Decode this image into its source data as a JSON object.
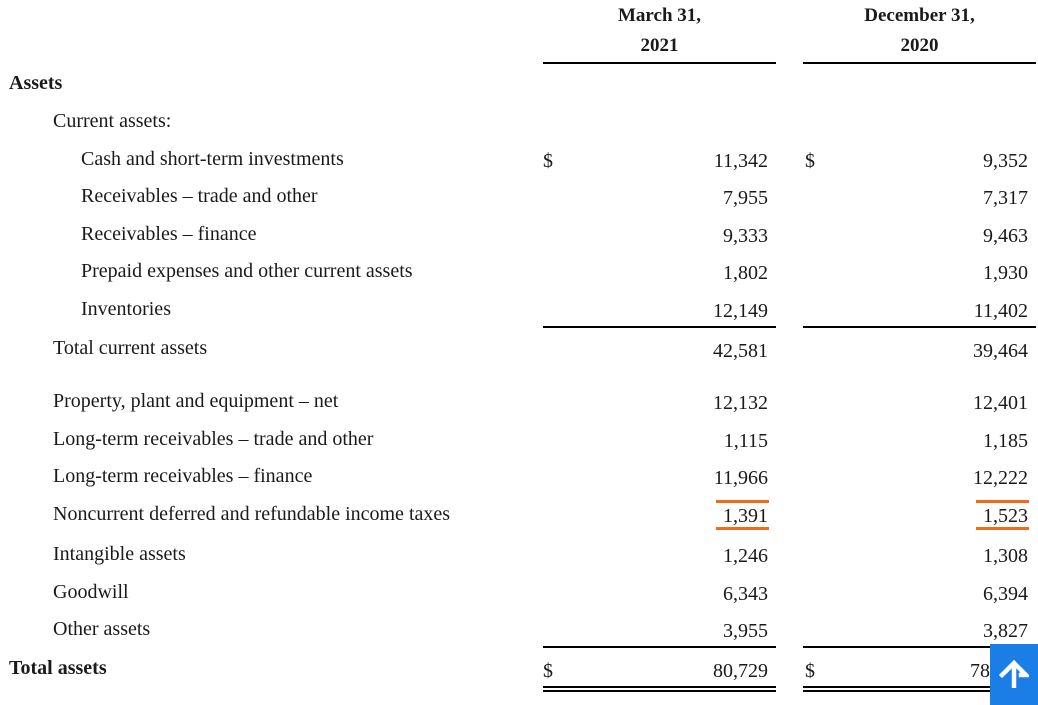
{
  "header": {
    "col1_line1": "March 31,",
    "col1_line2": "2021",
    "col2_line1": "December 31,",
    "col2_line2": "2020"
  },
  "section_title": "Assets",
  "current_assets_label": "Current assets:",
  "currency_symbol": "$",
  "rows": [
    {
      "label": "Cash and short-term investments",
      "mar": "11,342",
      "dec": "9,352"
    },
    {
      "label": "Receivables – trade and other",
      "mar": "7,955",
      "dec": "7,317"
    },
    {
      "label": "Receivables – finance",
      "mar": "9,333",
      "dec": "9,463"
    },
    {
      "label": "Prepaid expenses and other current assets",
      "mar": "1,802",
      "dec": "1,930"
    },
    {
      "label": "Inventories",
      "mar": "12,149",
      "dec": "11,402"
    },
    {
      "label": "Total current assets",
      "mar": "42,581",
      "dec": "39,464"
    },
    {
      "label": "Property, plant and equipment – net",
      "mar": "12,132",
      "dec": "12,401"
    },
    {
      "label": "Long-term receivables – trade and other",
      "mar": "1,115",
      "dec": "1,185"
    },
    {
      "label": "Long-term receivables – finance",
      "mar": "11,966",
      "dec": "12,222"
    },
    {
      "label": "Noncurrent deferred and refundable income taxes",
      "mar": "1,391",
      "dec": "1,523"
    },
    {
      "label": "Intangible assets",
      "mar": "1,246",
      "dec": "1,308"
    },
    {
      "label": "Goodwill",
      "mar": "6,343",
      "dec": "6,394"
    },
    {
      "label": "Other assets",
      "mar": "3,955",
      "dec": "3,827"
    }
  ],
  "total": {
    "label": "Total assets",
    "mar": "80,729",
    "dec_visible": "78"
  },
  "colors": {
    "highlight": "#ef6c1a",
    "scroll_button": "#1a7ee6"
  },
  "scroll_button_icon": "arrow-up-icon"
}
